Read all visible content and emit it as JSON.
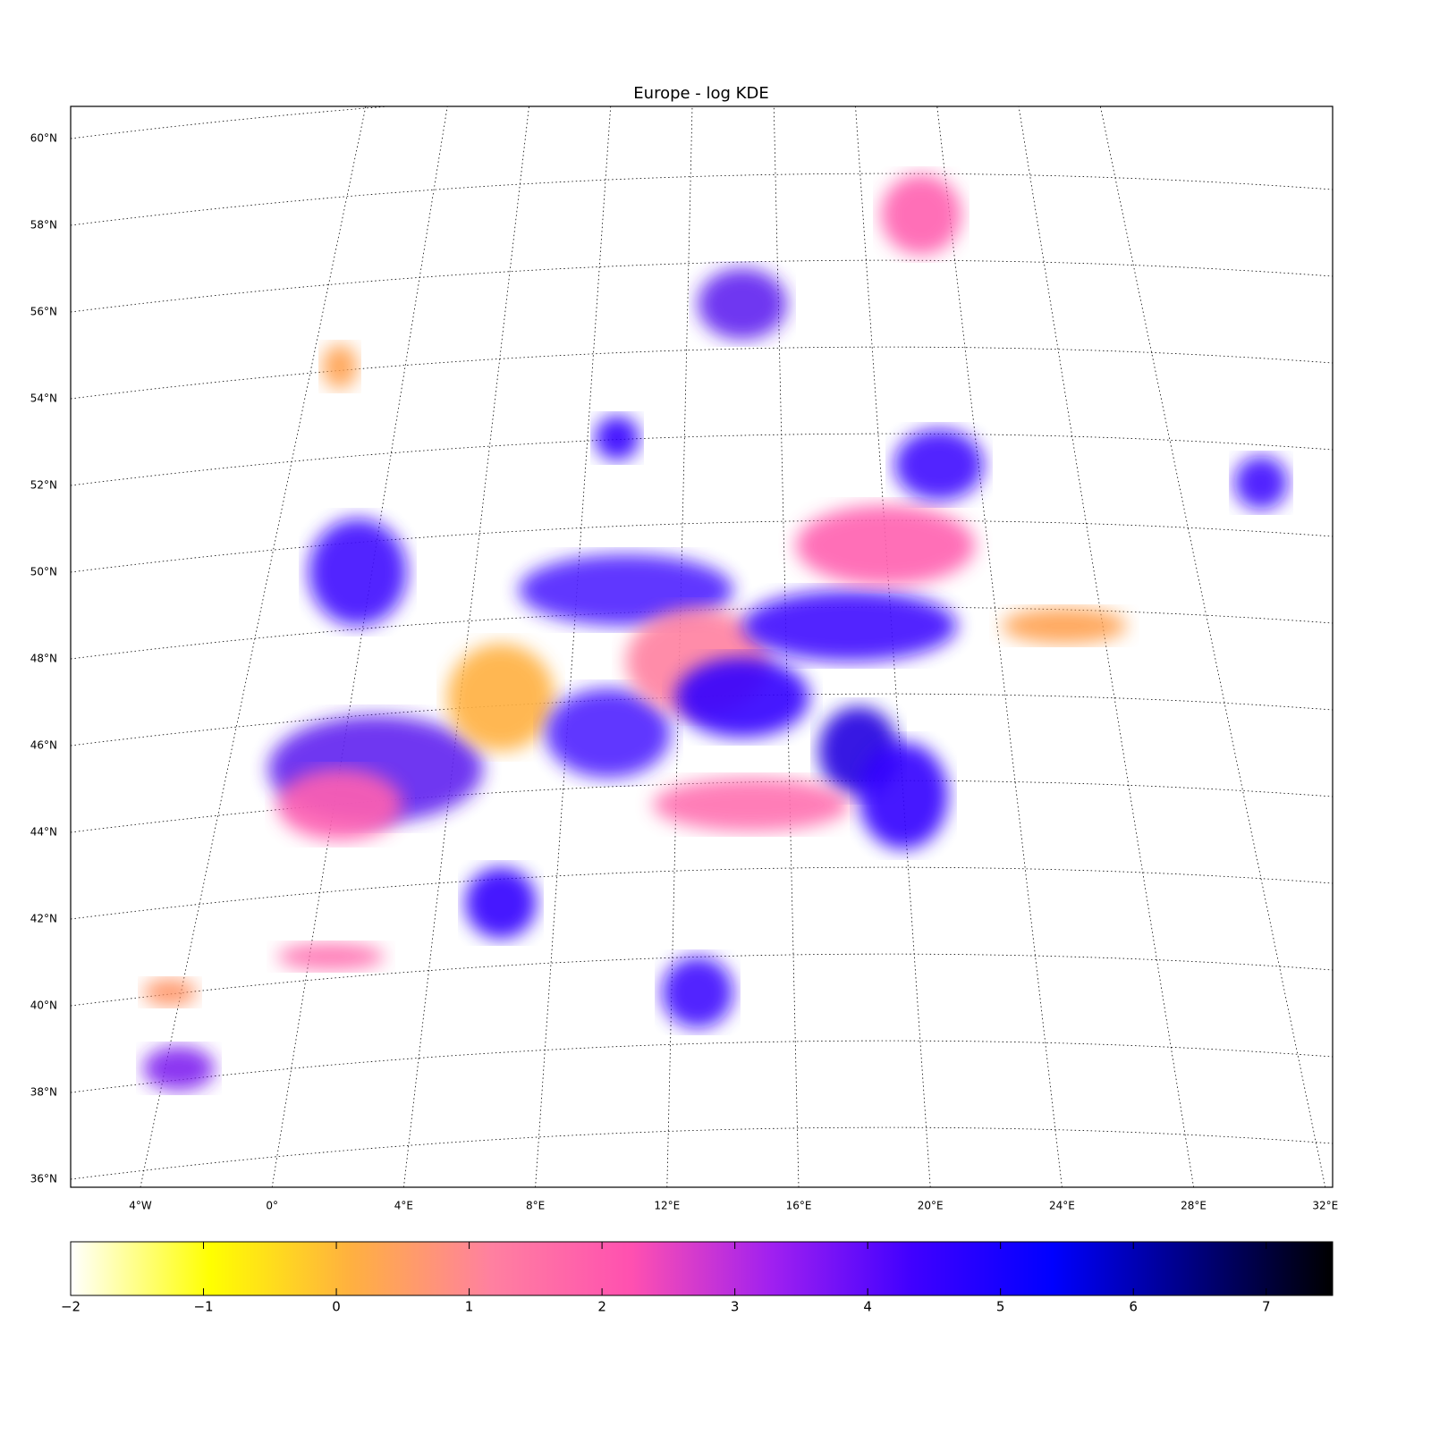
{
  "title": "Europe - log KDE",
  "map": {
    "lat_ticks": [
      {
        "value": 60,
        "label": "60°N"
      },
      {
        "value": 58,
        "label": "58°N"
      },
      {
        "value": 56,
        "label": "56°N"
      },
      {
        "value": 54,
        "label": "54°N"
      },
      {
        "value": 52,
        "label": "52°N"
      },
      {
        "value": 50,
        "label": "50°N"
      },
      {
        "value": 48,
        "label": "48°N"
      },
      {
        "value": 46,
        "label": "46°N"
      },
      {
        "value": 44,
        "label": "44°N"
      },
      {
        "value": 42,
        "label": "42°N"
      },
      {
        "value": 40,
        "label": "40°N"
      },
      {
        "value": 38,
        "label": "38°N"
      },
      {
        "value": 36,
        "label": "36°N"
      }
    ],
    "lon_ticks": [
      {
        "value": -4,
        "label": "4°W"
      },
      {
        "value": 0,
        "label": "0°"
      },
      {
        "value": 4,
        "label": "4°E"
      },
      {
        "value": 8,
        "label": "8°E"
      },
      {
        "value": 12,
        "label": "12°E"
      },
      {
        "value": 16,
        "label": "16°E"
      },
      {
        "value": 20,
        "label": "20°E"
      },
      {
        "value": 24,
        "label": "24°E"
      },
      {
        "value": 28,
        "label": "28°E"
      },
      {
        "value": 32,
        "label": "32°E"
      }
    ]
  },
  "colorbar": {
    "lim": [
      -2,
      7.5
    ],
    "ticks": [
      {
        "value": -2,
        "label": "−2"
      },
      {
        "value": -1,
        "label": "−1"
      },
      0,
      1,
      2,
      3,
      4,
      5,
      6,
      7
    ],
    "colors": [
      "#ffffff",
      "#ffff00",
      "#ffb040",
      "#ff80a0",
      "#ff50b0",
      "#a020f0",
      "#4000ff",
      "#0000ff",
      "#000080",
      "#000000"
    ]
  }
}
